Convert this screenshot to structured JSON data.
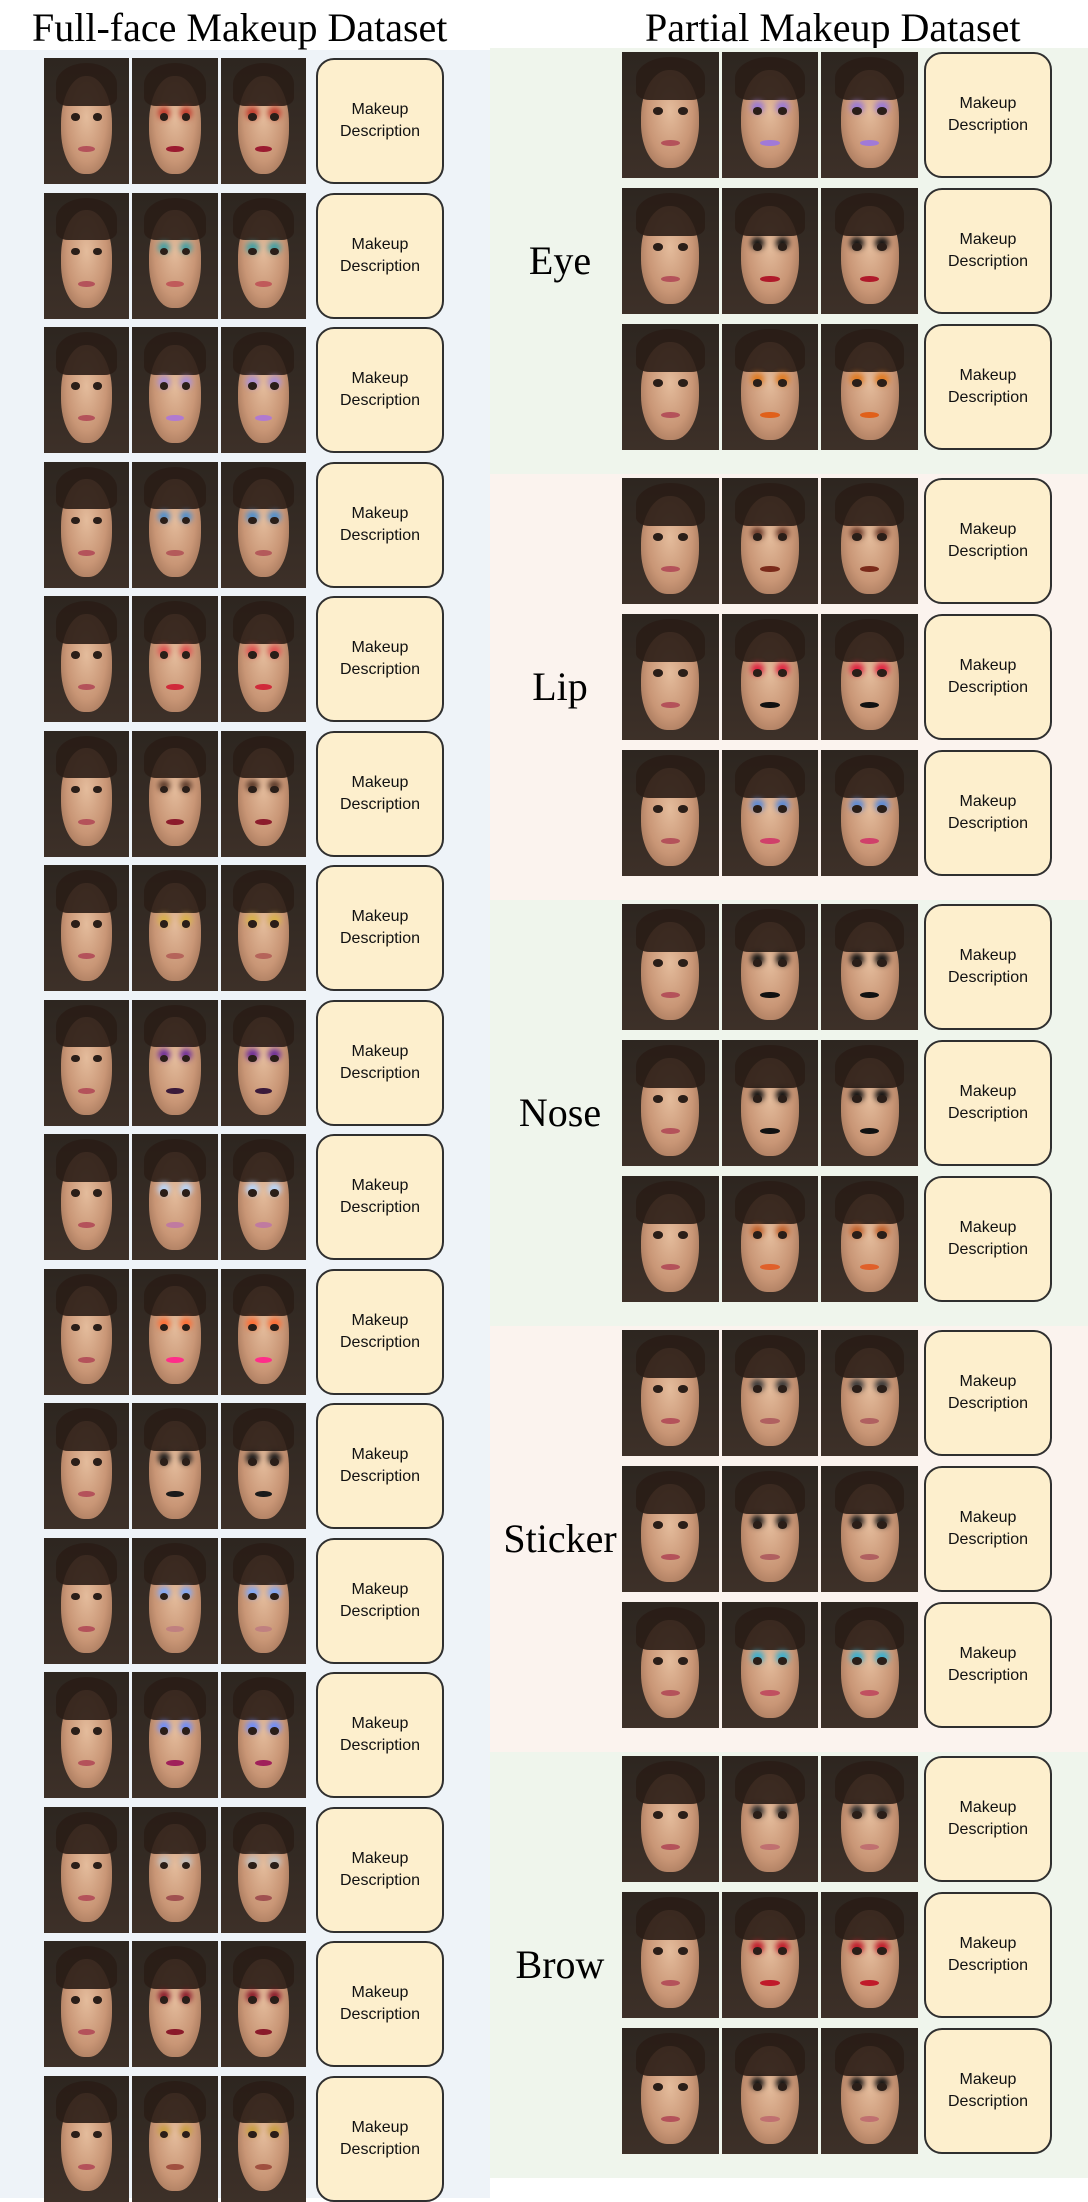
{
  "full_face": {
    "title": "Full-face Makeup Dataset",
    "description_label": "Makeup\nDescription",
    "rows": [
      {
        "accent": "#c0392b",
        "lip": "#9b1b30"
      },
      {
        "accent": "#3fa0a5",
        "lip": "#c05a5a"
      },
      {
        "accent": "#a98fd8",
        "lip": "#b07ad0"
      },
      {
        "accent": "#4b8fd0",
        "lip": "#b45a5a"
      },
      {
        "accent": "#e05050",
        "lip": "#d02a3a"
      },
      {
        "accent": "#5a3a2a",
        "lip": "#8c1c2c"
      },
      {
        "accent": "#d8b24a",
        "lip": "#b5645a"
      },
      {
        "accent": "#6a2a9a",
        "lip": "#3a1a3a"
      },
      {
        "accent": "#b8d8ff",
        "lip": "#c07aa0"
      },
      {
        "accent": "#ff6a30",
        "lip": "#ff2d8a"
      },
      {
        "accent": "#1a1a1a",
        "lip": "#1a1a1a"
      },
      {
        "accent": "#7aa8ff",
        "lip": "#c08080"
      },
      {
        "accent": "#6a8cff",
        "lip": "#a0205a"
      },
      {
        "accent": "#c0c0c0",
        "lip": "#a05050"
      },
      {
        "accent": "#8a1a2a",
        "lip": "#8a1a2a"
      },
      {
        "accent": "#c9a040",
        "lip": "#a05040"
      }
    ]
  },
  "partial": {
    "title": "Partial Makeup Dataset",
    "description_label": "Makeup\nDescription",
    "sections": [
      {
        "label": "Eye",
        "color": "#eff5ec",
        "rows": [
          {
            "accent": "#9a7ad8",
            "lip": "#a07ad8"
          },
          {
            "accent": "#111111",
            "lip": "#b01a2a"
          },
          {
            "accent": "#e07a20",
            "lip": "#e0601a"
          }
        ]
      },
      {
        "label": "Lip",
        "color": "#fbf3ee",
        "rows": [
          {
            "accent": "#6a3a2a",
            "lip": "#7a2a1a"
          },
          {
            "accent": "#e02040",
            "lip": "#111111"
          },
          {
            "accent": "#5a8ad8",
            "lip": "#d0406a"
          }
        ]
      },
      {
        "label": "Nose",
        "color": "#eff5ec",
        "rows": [
          {
            "accent": "#111111",
            "lip": "#111111"
          },
          {
            "accent": "#111111",
            "lip": "#111111"
          },
          {
            "accent": "#c0602a",
            "lip": "#e0602a"
          }
        ]
      },
      {
        "label": "Sticker",
        "color": "#fbf3ee",
        "rows": [
          {
            "accent": "#3a3a3a",
            "lip": "#b06060"
          },
          {
            "accent": "#1a1a1a",
            "lip": "#b06060"
          },
          {
            "accent": "#3ab0d0",
            "lip": "#c05060"
          }
        ]
      },
      {
        "label": "Brow",
        "color": "#eff5ec",
        "rows": [
          {
            "accent": "#2a2a2a",
            "lip": "#c07070"
          },
          {
            "accent": "#c01a2a",
            "lip": "#c01a2a"
          },
          {
            "accent": "#111111",
            "lip": "#c07070"
          }
        ]
      }
    ]
  }
}
